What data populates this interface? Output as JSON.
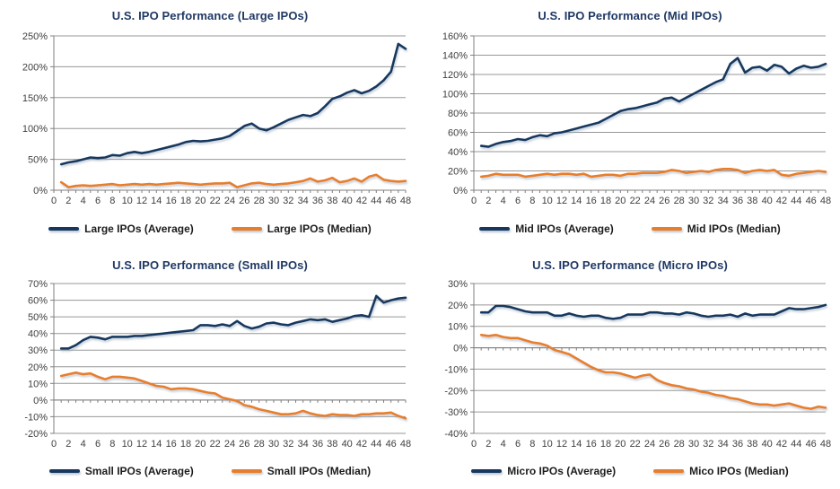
{
  "style": {
    "title_color": "#1F3864",
    "axis_text_color": "#3f3f3f",
    "gridline_color": "#979797",
    "axis_color": "#7f7f7f",
    "line_shadow_color": "#94a9bd",
    "legend_text_color": "#1c1c1c"
  },
  "chart_data": [
    {
      "type": "line",
      "title": "U.S. IPO Performance (Large IPOs)",
      "xlabel": "",
      "ylabel": "",
      "grid": "horizontal",
      "legend_position": "bottom",
      "x_start": 1,
      "x_step": 1,
      "x_max": 48,
      "x_tick_labels": [
        "0",
        "2",
        "4",
        "6",
        "8",
        "10",
        "12",
        "14",
        "16",
        "18",
        "20",
        "22",
        "24",
        "26",
        "28",
        "30",
        "32",
        "34",
        "36",
        "38",
        "40",
        "42",
        "44",
        "46",
        "48"
      ],
      "y_min": 0,
      "y_max": 250,
      "y_tick_labels": [
        "250%",
        "200%",
        "150%",
        "100%",
        "50%",
        "0%"
      ],
      "series": [
        {
          "name": "Large IPOs (Average)",
          "color": "#17375E",
          "values": [
            42,
            45,
            47,
            50,
            53,
            52,
            53,
            57,
            56,
            60,
            62,
            60,
            62,
            65,
            68,
            71,
            74,
            78,
            80,
            79,
            80,
            82,
            84,
            88,
            96,
            104,
            108,
            100,
            97,
            102,
            108,
            114,
            118,
            122,
            120,
            125,
            136,
            148,
            152,
            158,
            162,
            157,
            161,
            168,
            178,
            192,
            237,
            229
          ]
        },
        {
          "name": "Large IPOs (Median)",
          "color": "#E87E2B",
          "values": [
            13,
            5,
            7,
            8,
            7,
            8,
            9,
            10,
            8,
            9,
            10,
            9,
            10,
            9,
            10,
            11,
            12,
            11,
            10,
            9,
            10,
            11,
            11,
            12,
            5,
            8,
            11,
            12,
            10,
            9,
            10,
            11,
            13,
            15,
            19,
            14,
            16,
            20,
            13,
            15,
            19,
            14,
            22,
            25,
            17,
            15,
            14,
            15
          ]
        }
      ]
    },
    {
      "type": "line",
      "title": "U.S. IPO Performance (Mid IPOs)",
      "xlabel": "",
      "ylabel": "",
      "grid": "horizontal",
      "legend_position": "bottom",
      "x_start": 1,
      "x_step": 1,
      "x_max": 48,
      "x_tick_labels": [
        "0",
        "2",
        "4",
        "6",
        "8",
        "10",
        "12",
        "14",
        "16",
        "18",
        "20",
        "22",
        "24",
        "26",
        "28",
        "30",
        "32",
        "34",
        "36",
        "38",
        "40",
        "42",
        "44",
        "46",
        "48"
      ],
      "y_min": 0,
      "y_max": 160,
      "y_tick_labels": [
        "160%",
        "140%",
        "120%",
        "100%",
        "80%",
        "60%",
        "40%",
        "20%",
        "0%"
      ],
      "series": [
        {
          "name": "Mid IPOs (Average)",
          "color": "#17375E",
          "values": [
            46,
            45,
            48,
            50,
            51,
            53,
            52,
            55,
            57,
            56,
            59,
            60,
            62,
            64,
            66,
            68,
            70,
            74,
            78,
            82,
            84,
            85,
            87,
            89,
            91,
            95,
            96,
            92,
            96,
            100,
            104,
            108,
            112,
            115,
            131,
            137,
            122,
            127,
            128,
            124,
            130,
            128,
            121,
            126,
            129,
            127,
            128,
            131
          ]
        },
        {
          "name": "Mid IPOs (Median)",
          "color": "#E87E2B",
          "values": [
            14,
            15,
            17,
            16,
            16,
            16,
            14,
            15,
            16,
            17,
            16,
            17,
            17,
            16,
            17,
            14,
            15,
            16,
            16,
            15,
            17,
            17,
            18,
            18,
            18,
            19,
            21,
            20,
            18,
            19,
            20,
            19,
            21,
            22,
            22,
            21,
            18,
            20,
            21,
            20,
            21,
            16,
            15,
            17,
            18,
            19,
            20,
            19
          ]
        }
      ]
    },
    {
      "type": "line",
      "title": "U.S. IPO Performance (Small IPOs)",
      "xlabel": "",
      "ylabel": "",
      "grid": "horizontal",
      "legend_position": "bottom",
      "x_start": 1,
      "x_step": 1,
      "x_max": 48,
      "x_tick_labels": [
        "0",
        "2",
        "4",
        "6",
        "8",
        "10",
        "12",
        "14",
        "16",
        "18",
        "20",
        "22",
        "24",
        "26",
        "28",
        "30",
        "32",
        "34",
        "36",
        "38",
        "40",
        "42",
        "44",
        "46",
        "48"
      ],
      "y_min": -20,
      "y_max": 70,
      "y_tick_labels": [
        "70%",
        "60%",
        "50%",
        "40%",
        "30%",
        "20%",
        "10%",
        "0%",
        "-10%",
        "-20%"
      ],
      "series": [
        {
          "name": "Small IPOs (Average)",
          "color": "#17375E",
          "values": [
            31,
            31,
            33,
            36,
            38,
            37.5,
            36.5,
            38,
            38,
            38,
            38.5,
            38.5,
            39,
            39.5,
            40,
            40.5,
            41,
            41.5,
            42,
            45,
            45,
            44.5,
            45.5,
            44.5,
            47.5,
            44.5,
            43,
            44,
            46,
            46.5,
            45.5,
            45,
            46.5,
            47.5,
            48.5,
            48,
            48.5,
            47,
            48,
            49,
            50.5,
            51,
            50,
            62.5,
            58.5,
            60,
            61,
            61.5
          ]
        },
        {
          "name": "Small IPOs (Median)",
          "color": "#E87E2B",
          "values": [
            14.5,
            15.5,
            16.5,
            15.5,
            16,
            14,
            12.5,
            14,
            14,
            13.5,
            13,
            11.5,
            10,
            8.5,
            8,
            6.5,
            7,
            7,
            6.5,
            5.5,
            4.5,
            4,
            1.5,
            0.5,
            -0.5,
            -3,
            -4,
            -5.5,
            -6.5,
            -7.5,
            -8.5,
            -8.5,
            -8,
            -6.5,
            -8,
            -9,
            -9.5,
            -8.5,
            -9,
            -9,
            -9.5,
            -8.5,
            -8.5,
            -8,
            -8,
            -7.5,
            -9.5,
            -11
          ]
        }
      ]
    },
    {
      "type": "line",
      "title": "U.S. IPO Performance (Micro IPOs)",
      "xlabel": "",
      "ylabel": "",
      "grid": "horizontal",
      "legend_position": "bottom",
      "x_start": 1,
      "x_step": 1,
      "x_max": 48,
      "x_tick_labels": [
        "0",
        "2",
        "4",
        "6",
        "8",
        "10",
        "12",
        "14",
        "16",
        "18",
        "20",
        "22",
        "24",
        "26",
        "28",
        "30",
        "32",
        "34",
        "36",
        "38",
        "40",
        "42",
        "44",
        "46",
        "48"
      ],
      "y_min": -40,
      "y_max": 30,
      "y_tick_labels": [
        "30%",
        "20%",
        "10%",
        "0%",
        "-10%",
        "-20%",
        "-30%",
        "-40%"
      ],
      "series": [
        {
          "name": "Micro IPOs (Average)",
          "color": "#17375E",
          "values": [
            16.5,
            16.5,
            19.5,
            19.5,
            19,
            18,
            17,
            16.5,
            16.5,
            16.5,
            15,
            15,
            16,
            15,
            14.5,
            15,
            15,
            14,
            13.5,
            14,
            15.5,
            15.5,
            15.5,
            16.5,
            16.5,
            16,
            16,
            15.5,
            16.5,
            16,
            15,
            14.5,
            15,
            15,
            15.5,
            14.5,
            16,
            15,
            15.5,
            15.5,
            15.5,
            17,
            18.5,
            18,
            18,
            18.5,
            19,
            20
          ]
        },
        {
          "name": "Mico IPOs (Median)",
          "color": "#E87E2B",
          "values": [
            6,
            5.5,
            6,
            5,
            4.5,
            4.5,
            3.5,
            2.5,
            2,
            1,
            -1,
            -2,
            -3,
            -5,
            -7,
            -9,
            -10.5,
            -11.5,
            -11.5,
            -12,
            -13,
            -14,
            -13,
            -12.5,
            -15,
            -16.5,
            -17.5,
            -18,
            -19,
            -19.5,
            -20.5,
            -21,
            -22,
            -22.5,
            -23.5,
            -24,
            -25,
            -26,
            -26.5,
            -26.5,
            -27,
            -26.5,
            -26,
            -27,
            -28,
            -28.5,
            -27.5,
            -28
          ]
        }
      ]
    }
  ]
}
